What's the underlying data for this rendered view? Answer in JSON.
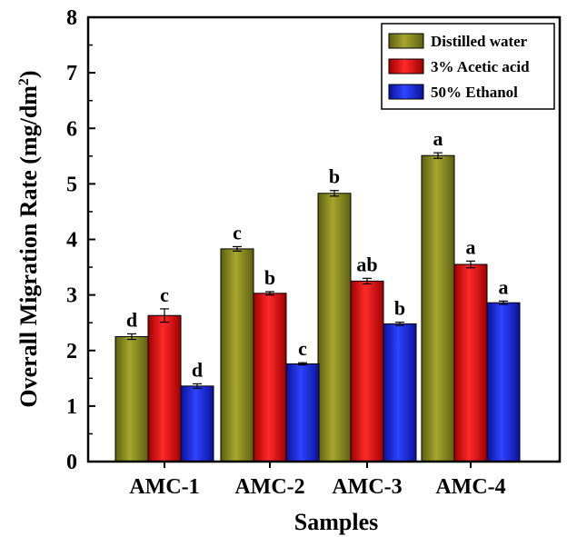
{
  "chart_data": {
    "type": "bar",
    "title": "",
    "xlabel": "Samples",
    "ylabel_main": "Overall Migration Rate (mg/dm",
    "ylabel_sup": "2",
    "ylabel_close": ")",
    "ylim": [
      0,
      8
    ],
    "yticks": [
      "0",
      "1",
      "2",
      "3",
      "4",
      "5",
      "6",
      "7",
      "8"
    ],
    "categories": [
      "AMC-1",
      "AMC-2",
      "AMC-3",
      "AMC-4"
    ],
    "legend_position": "top-right",
    "series": [
      {
        "name": "Distilled water",
        "color": "#8a8a1e",
        "values": [
          2.25,
          3.83,
          4.83,
          5.51
        ],
        "errors": [
          0.05,
          0.04,
          0.05,
          0.05
        ],
        "labels": [
          "d",
          "c",
          "b",
          "a"
        ]
      },
      {
        "name": "3% Acetic acid",
        "color": "#e01010",
        "values": [
          2.63,
          3.03,
          3.25,
          3.55
        ],
        "errors": [
          0.12,
          0.03,
          0.05,
          0.06
        ],
        "labels": [
          "c",
          "b",
          "ab",
          "a"
        ]
      },
      {
        "name": "50% Ethanol",
        "color": "#1a2ce8",
        "values": [
          1.36,
          1.76,
          2.48,
          2.86
        ],
        "errors": [
          0.04,
          0.02,
          0.03,
          0.03
        ],
        "labels": [
          "d",
          "c",
          "b",
          "a"
        ]
      }
    ]
  }
}
